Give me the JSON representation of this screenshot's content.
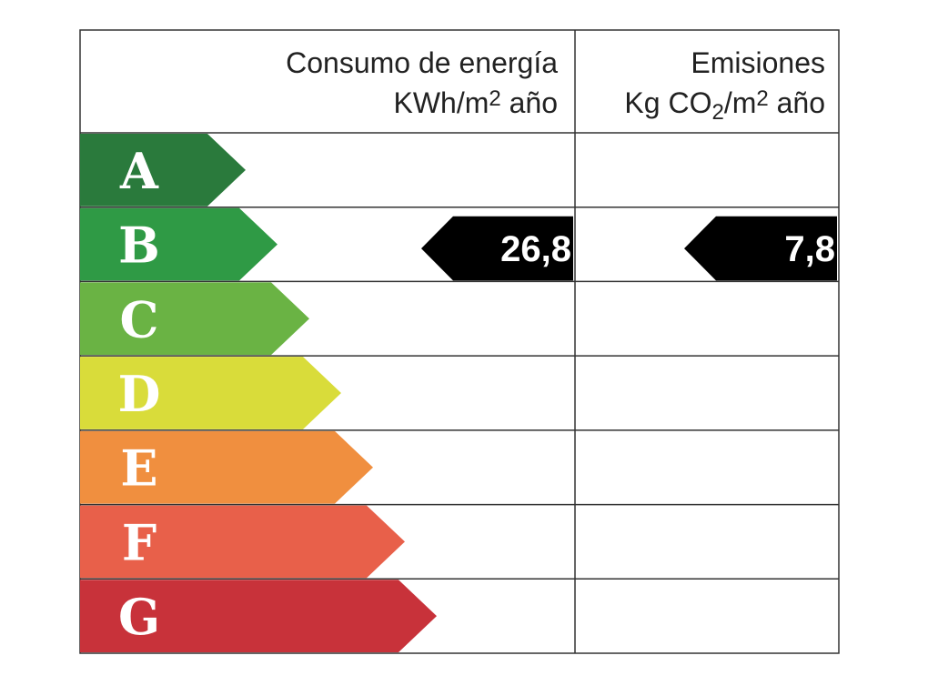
{
  "header": {
    "energy": [
      [
        {
          "text": "Consumo de energía"
        }
      ],
      [
        {
          "text": "KWh/m"
        },
        {
          "text": "2",
          "sup": true
        },
        {
          "text": " año"
        }
      ]
    ],
    "emissions": [
      [
        {
          "text": "Emisiones"
        }
      ],
      [
        {
          "text": "Kg CO"
        },
        {
          "text": "2",
          "sub": true
        },
        {
          "text": "/m"
        },
        {
          "text": "2",
          "sup": true
        },
        {
          "text": " año"
        }
      ]
    ]
  },
  "ratings": [
    {
      "letter": "A",
      "color": "#2a7a3c"
    },
    {
      "letter": "B",
      "color": "#2f9a45"
    },
    {
      "letter": "C",
      "color": "#6ab344"
    },
    {
      "letter": "D",
      "color": "#d9dc3a"
    },
    {
      "letter": "E",
      "color": "#f08f3f"
    },
    {
      "letter": "F",
      "color": "#e8604a"
    },
    {
      "letter": "G",
      "color": "#c8323a"
    }
  ],
  "energy": {
    "value": "26,8",
    "rating": "B"
  },
  "emissions": {
    "value": "7,8",
    "rating": "B"
  }
}
